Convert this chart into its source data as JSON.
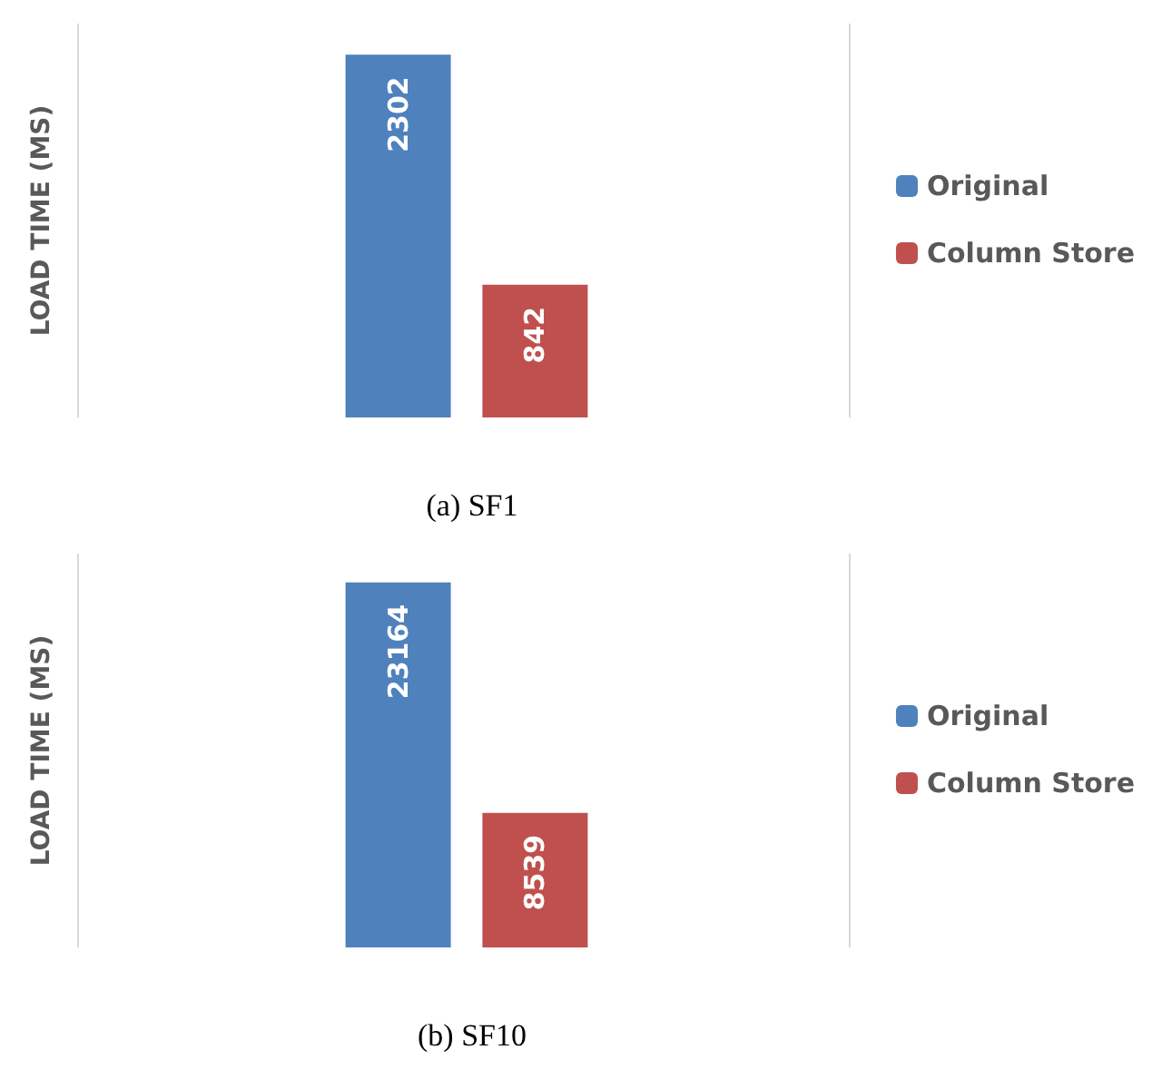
{
  "chart_data": [
    {
      "type": "bar",
      "title": "(a) SF1",
      "ylabel": "LOAD TIME (MS)",
      "categories": [
        null
      ],
      "series": [
        {
          "name": "Original",
          "color": "#4f81bd",
          "values": [
            2302
          ]
        },
        {
          "name": "Column Store",
          "color": "#c0504d",
          "values": [
            842
          ]
        }
      ],
      "data_labels": true,
      "legend": "right"
    },
    {
      "type": "bar",
      "title": "(b) SF10",
      "ylabel": "LOAD TIME (MS)",
      "categories": [
        null
      ],
      "series": [
        {
          "name": "Original",
          "color": "#4f81bd",
          "values": [
            23164
          ]
        },
        {
          "name": "Column Store",
          "color": "#c0504d",
          "values": [
            8539
          ]
        }
      ],
      "data_labels": true,
      "legend": "right"
    }
  ]
}
